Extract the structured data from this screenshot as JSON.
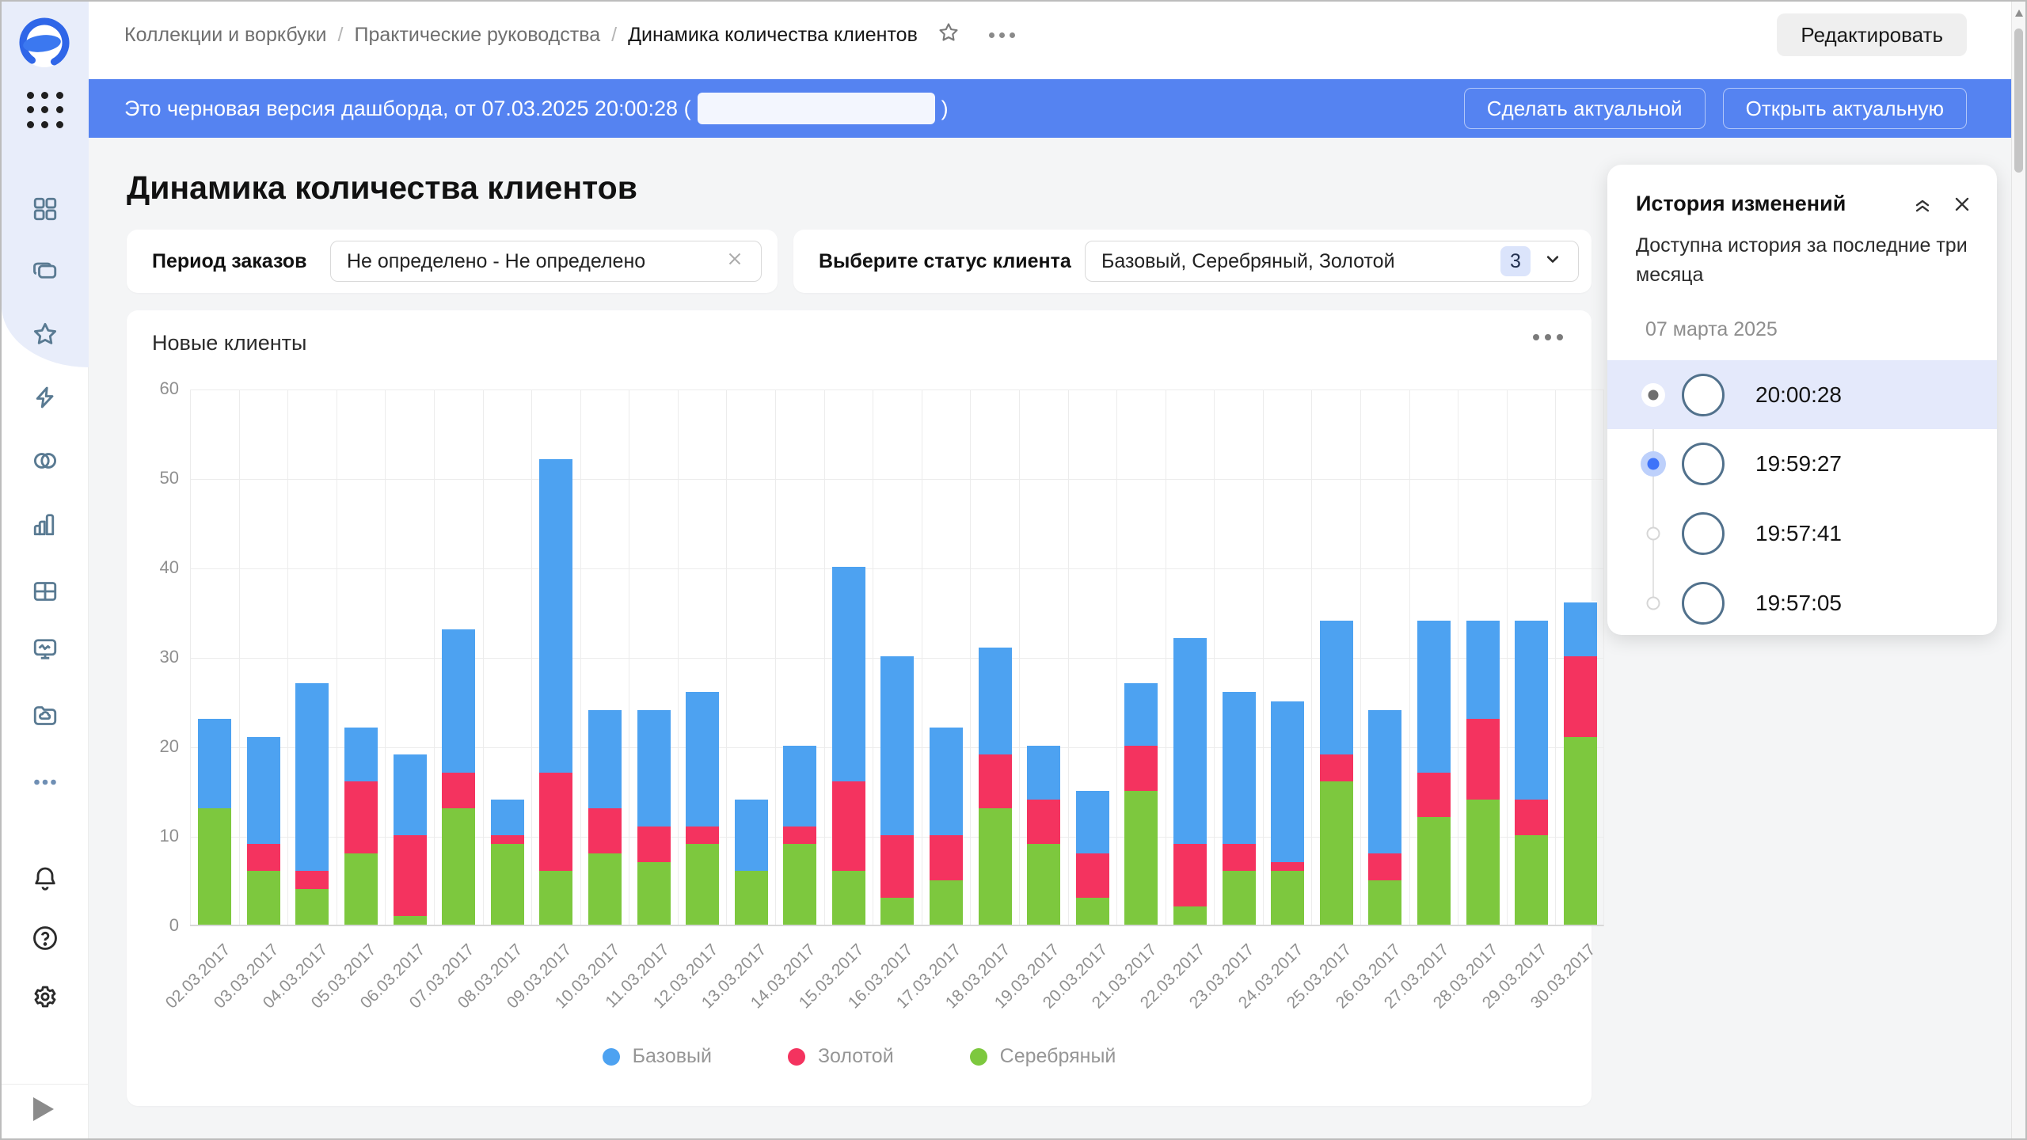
{
  "topbar": {
    "breadcrumb": [
      "Коллекции и воркбуки",
      "Практические руководства",
      "Динамика количества клиентов"
    ],
    "edit_button": "Редактировать"
  },
  "banner": {
    "message_prefix": "Это черновая версия дашборда, от 07.03.2025 20:00:28 (",
    "message_suffix": ")",
    "make_actual_button": "Сделать актуальной",
    "open_actual_button": "Открыть актуальную"
  },
  "sidebar": {
    "items": [
      "datalens-logo",
      "apps-grid",
      "dashboard-grid",
      "collections",
      "favorites-star",
      "quick-bolt",
      "linked-circles",
      "bar-chart",
      "table",
      "monitor-pulse",
      "cloud-folder",
      "more-ellipsis",
      "notifications-bell",
      "help-question",
      "settings-gear",
      "expand-play"
    ]
  },
  "page": {
    "title": "Динамика количества клиентов"
  },
  "filters": {
    "period": {
      "label": "Период заказов",
      "value": "Не определено - Не определено"
    },
    "status": {
      "label": "Выберите статус клиента",
      "value": "Базовый, Серебряный, Золотой",
      "count": "3"
    }
  },
  "widget": {
    "title": "Новые клиенты"
  },
  "chart_data": {
    "type": "bar",
    "stacked": true,
    "title": "Новые клиенты",
    "categories": [
      "02.03.2017",
      "03.03.2017",
      "04.03.2017",
      "05.03.2017",
      "06.03.2017",
      "07.03.2017",
      "08.03.2017",
      "09.03.2017",
      "10.03.2017",
      "11.03.2017",
      "12.03.2017",
      "13.03.2017",
      "14.03.2017",
      "15.03.2017",
      "16.03.2017",
      "17.03.2017",
      "18.03.2017",
      "19.03.2017",
      "20.03.2017",
      "21.03.2017",
      "22.03.2017",
      "23.03.2017",
      "24.03.2017",
      "25.03.2017",
      "26.03.2017",
      "27.03.2017",
      "28.03.2017",
      "29.03.2017",
      "30.03.2017"
    ],
    "series": [
      {
        "name": "Серебряный",
        "color": "#7dc83e",
        "values": [
          13,
          6,
          4,
          8,
          1,
          13,
          9,
          6,
          8,
          7,
          9,
          6,
          9,
          6,
          3,
          5,
          13,
          9,
          3,
          15,
          2,
          6,
          6,
          16,
          5,
          12,
          14,
          10,
          21
        ]
      },
      {
        "name": "Золотой",
        "color": "#f4335f",
        "values": [
          0,
          3,
          2,
          8,
          9,
          4,
          1,
          11,
          5,
          4,
          2,
          0,
          2,
          10,
          7,
          5,
          6,
          5,
          5,
          5,
          7,
          3,
          1,
          3,
          3,
          5,
          9,
          4,
          9
        ]
      },
      {
        "name": "Базовый",
        "color": "#4da2f1",
        "values": [
          10,
          12,
          21,
          6,
          9,
          16,
          4,
          35,
          11,
          13,
          15,
          8,
          9,
          24,
          20,
          12,
          12,
          6,
          7,
          7,
          23,
          17,
          18,
          15,
          16,
          17,
          11,
          20,
          6
        ]
      }
    ],
    "legend_order": [
      "Базовый",
      "Золотой",
      "Серебряный"
    ],
    "ylim": [
      0,
      60
    ],
    "yticks": [
      0,
      10,
      20,
      30,
      40,
      50,
      60
    ],
    "grid": true,
    "legend_position": "bottom"
  },
  "history": {
    "title": "История изменений",
    "subtitle": "Доступна история за последние три месяца",
    "date_group": "07 марта 2025",
    "entries": [
      {
        "time": "20:00:28",
        "state": "current"
      },
      {
        "time": "19:59:27",
        "state": "selected"
      },
      {
        "time": "19:57:41",
        "state": "default"
      },
      {
        "time": "19:57:05",
        "state": "default"
      }
    ]
  }
}
